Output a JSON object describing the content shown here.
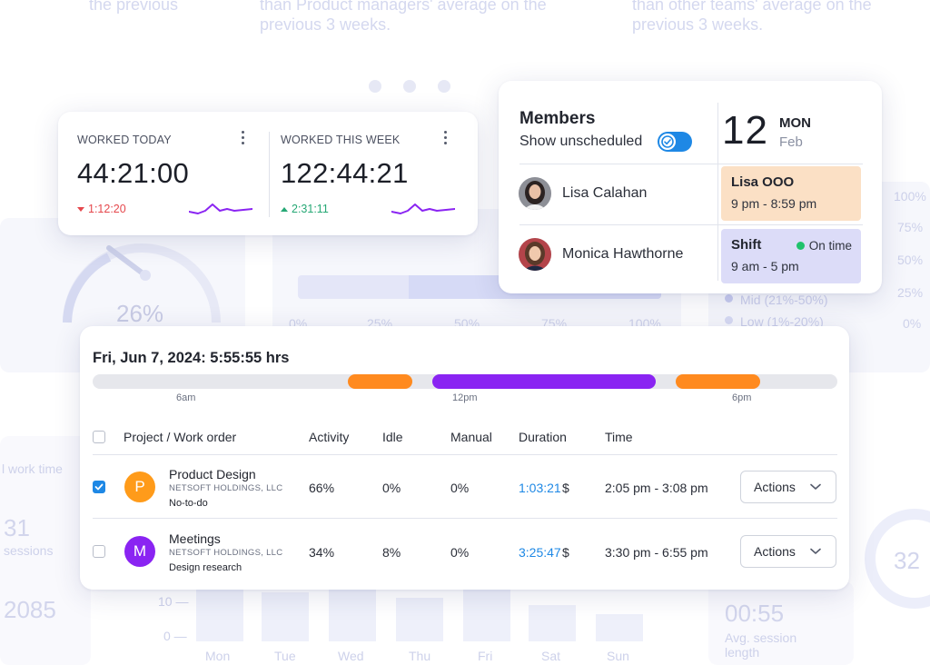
{
  "worked_today": {
    "label": "WORKED TODAY",
    "value": "44:21:00",
    "delta": "1:12:20",
    "trend": "down",
    "trend_color": "#e5484d"
  },
  "worked_week": {
    "label": "WORKED THIS WEEK",
    "value": "122:44:21",
    "delta": "2:31:11",
    "trend": "up",
    "trend_color": "#26a875"
  },
  "members": {
    "title": "Members",
    "show_unscheduled_label": "Show unscheduled",
    "show_unscheduled_on": true,
    "date": {
      "day_number": "12",
      "weekday": "MON",
      "month": "Feb"
    },
    "rows": [
      {
        "name": "Lisa Calahan",
        "schedule_title": "Lisa OOO",
        "schedule_time": "9 pm - 8:59 pm",
        "schedule_color": "#fbe0c5"
      },
      {
        "name": "Monica Hawthorne",
        "schedule_title": "Shift",
        "schedule_status": "On time",
        "schedule_time": "9 am - 5 pm",
        "schedule_color": "#dcdcf8"
      }
    ]
  },
  "timesheet": {
    "title": "Fri, Jun 7, 2024: 5:55:55 hrs",
    "timeline_ticks": [
      "6am",
      "12pm",
      "6pm"
    ],
    "timeline_colors": {
      "track": "#e6e7ec",
      "orange": "#ff8a1f",
      "purple": "#8a24f2"
    },
    "columns": [
      "Project / Work order",
      "Activity",
      "Idle",
      "Manual",
      "Duration",
      "Time"
    ],
    "rows": [
      {
        "checked": true,
        "initial": "P",
        "avatar_color": "#ff9b1a",
        "project": "Product Design",
        "client": "NETSOFT HOLDINGS, LLC",
        "todo": "No-to-do",
        "activity": "66%",
        "idle": "0%",
        "manual": "0%",
        "duration": "1:03:21",
        "billable": "$",
        "time": "2:05 pm - 3:08 pm",
        "action": "Actions"
      },
      {
        "checked": false,
        "initial": "M",
        "avatar_color": "#8a24f2",
        "project": "Meetings",
        "client": "NETSOFT HOLDINGS, LLC",
        "todo": "Design research",
        "activity": "34%",
        "idle": "8%",
        "manual": "0%",
        "duration": "3:25:47",
        "billable": "$",
        "time": "3:30 pm - 6:55 pm",
        "action": "Actions"
      }
    ]
  },
  "background": {
    "top_texts": [
      "the previous",
      "than Product managers' average on the previous 3 weeks.",
      "than other teams' average on the previous 3 weeks."
    ],
    "gauge_percent": "26%",
    "bar_ticks": [
      "0%",
      "25%",
      "50%",
      "75%",
      "100%"
    ],
    "legend": [
      "Mid (21%-50%)",
      "Low (1%-20%)"
    ],
    "right_ticks": [
      "100%",
      "75%",
      "50%",
      "25%",
      "0%"
    ],
    "left_texts": [
      "l work time",
      "31",
      "sessions",
      "2085"
    ],
    "chart_days": [
      "Mon",
      "Tue",
      "Wed",
      "Thu",
      "Fri",
      "Sat",
      "Sun"
    ],
    "chart_axis": [
      "10 —",
      "0 —"
    ],
    "session_value": "00:55",
    "session_label": "Avg. session length",
    "ring_value": "32"
  }
}
